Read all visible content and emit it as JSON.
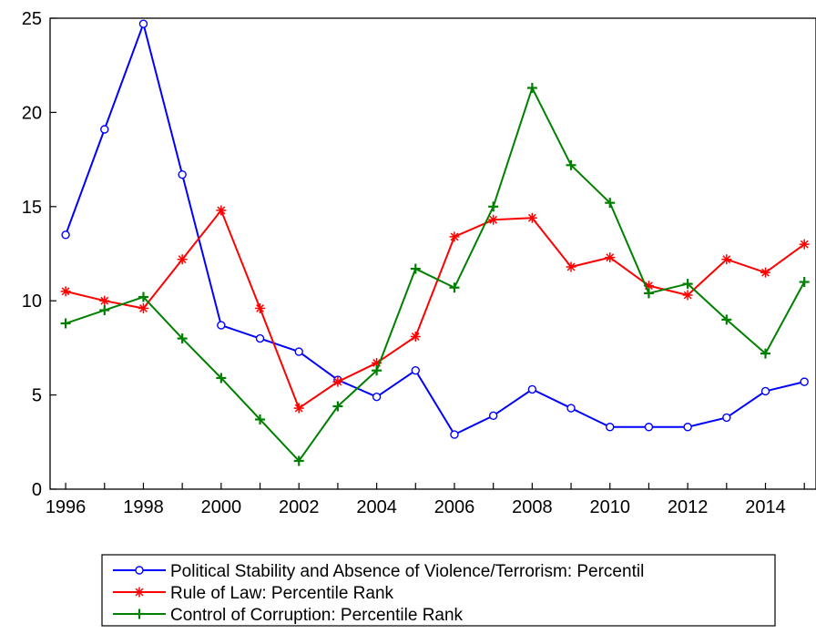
{
  "chart_data": {
    "type": "line",
    "title": "",
    "xlabel": "",
    "ylabel": "",
    "x": [
      1996,
      1997,
      1998,
      1999,
      2000,
      2001,
      2002,
      2003,
      2004,
      2005,
      2006,
      2007,
      2008,
      2009,
      2010,
      2011,
      2012,
      2013,
      2014,
      2015
    ],
    "xlim": [
      1995.6,
      2015.3
    ],
    "ylim": [
      0,
      25
    ],
    "xticks": [
      "1996",
      "1998",
      "2000",
      "2002",
      "2004",
      "2006",
      "2008",
      "2010",
      "2012",
      "2014"
    ],
    "yticks": [
      "0",
      "5",
      "10",
      "15",
      "20",
      "25"
    ],
    "grid": false,
    "legend_position": "bottom",
    "series": [
      {
        "name": "Political Stability and Absence of Violence/Terrorism: Percentil",
        "color": "#0000ff",
        "marker": "circle",
        "values": [
          13.5,
          19.1,
          24.7,
          16.7,
          8.7,
          8.0,
          7.3,
          5.8,
          4.9,
          6.3,
          2.9,
          3.9,
          5.3,
          4.3,
          3.3,
          3.3,
          3.3,
          3.8,
          5.2,
          5.7
        ]
      },
      {
        "name": "Rule of Law: Percentile Rank",
        "color": "#ff0000",
        "marker": "asterisk",
        "values": [
          10.5,
          10.0,
          9.6,
          12.2,
          14.8,
          9.6,
          4.3,
          5.7,
          6.7,
          8.1,
          13.4,
          14.3,
          14.4,
          11.8,
          12.3,
          10.8,
          10.3,
          12.2,
          11.5,
          13.0
        ]
      },
      {
        "name": "Control of Corruption: Percentile Rank",
        "color": "#008000",
        "marker": "plus",
        "values": [
          8.8,
          9.5,
          10.2,
          8.0,
          5.9,
          3.7,
          1.5,
          4.4,
          6.3,
          11.7,
          10.7,
          15.0,
          21.3,
          17.2,
          15.2,
          10.4,
          10.9,
          9.0,
          7.2,
          11.0
        ]
      }
    ]
  }
}
